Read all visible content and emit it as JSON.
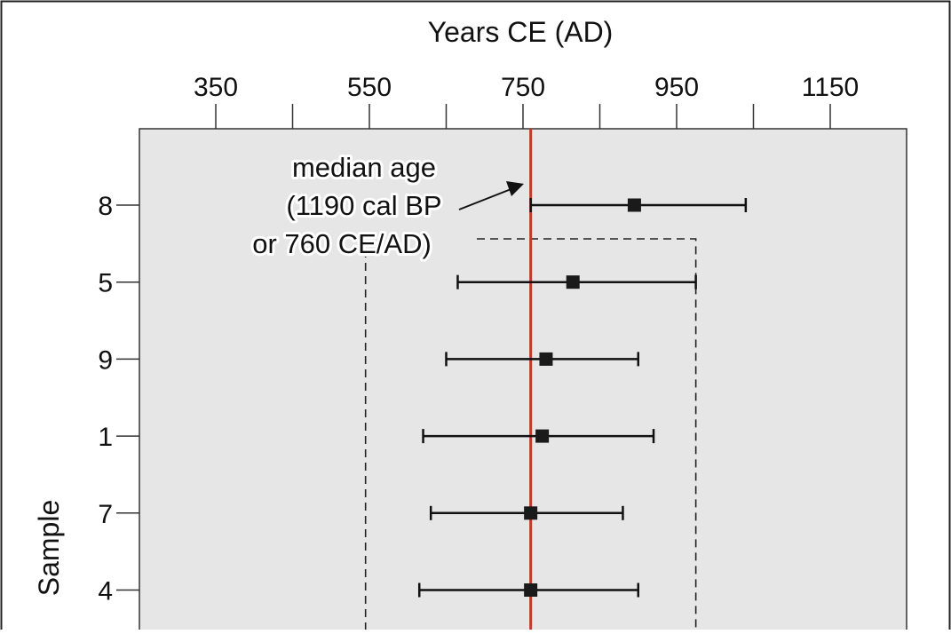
{
  "chart_data": {
    "type": "scatter",
    "title": "",
    "xlabel": "Years CE (AD)",
    "ylabel": "Sample",
    "x_axis_position": "top",
    "xlim": [
      250,
      1270
    ],
    "x_tick_labels": [
      350,
      550,
      750,
      950,
      1150
    ],
    "x_minor_ticks": [
      450,
      650,
      850,
      1050
    ],
    "y_categories": [
      "8",
      "5",
      "9",
      "1",
      "7",
      "4"
    ],
    "series": [
      {
        "points": [
          {
            "sample": "8",
            "median": 895,
            "low": 760,
            "high": 1040
          },
          {
            "sample": "5",
            "median": 815,
            "low": 665,
            "high": 975
          },
          {
            "sample": "9",
            "median": 780,
            "low": 650,
            "high": 900
          },
          {
            "sample": "1",
            "median": 775,
            "low": 620,
            "high": 920
          },
          {
            "sample": "7",
            "median": 760,
            "low": 630,
            "high": 880
          },
          {
            "sample": "4",
            "median": 760,
            "low": 615,
            "high": 900
          }
        ]
      }
    ],
    "median_line": {
      "x": 760,
      "color": "#c0392b"
    },
    "annotation": {
      "lines": [
        "median age",
        "(1190 cal BP",
        "or 760 CE/AD)"
      ]
    },
    "dashed_range": {
      "low": 545,
      "high": 975
    },
    "plot_background": "#e6e6e6",
    "grid": false
  }
}
